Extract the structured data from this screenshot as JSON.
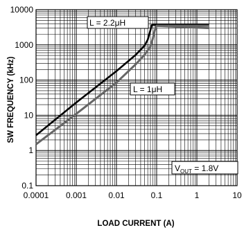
{
  "chart_data": {
    "type": "line",
    "xlabel": "LOAD CURRENT (A)",
    "ylabel": "SW FREQUENCY (kHz)",
    "x_scale": "log",
    "y_scale": "log",
    "xlim": [
      0.0001,
      10
    ],
    "ylim": [
      0.1,
      10000
    ],
    "grid": true,
    "x_ticks": [
      "0.0001",
      "0.001",
      "0.01",
      "0.1",
      "1",
      "10"
    ],
    "y_ticks": [
      "10000",
      "1000",
      "100",
      "10",
      "1",
      "0.1"
    ],
    "series": [
      {
        "name": "L = 2.2μH",
        "color": "#000000",
        "points": [
          [
            0.0001,
            2.7
          ],
          [
            0.001,
            23
          ],
          [
            0.01,
            180
          ],
          [
            0.03,
            520
          ],
          [
            0.05,
            950
          ],
          [
            0.06,
            1400
          ],
          [
            0.07,
            2600
          ],
          [
            0.075,
            3600
          ],
          [
            0.08,
            3700
          ],
          [
            2,
            3700
          ]
        ]
      },
      {
        "name": "L = 1μH",
        "color": "#666666",
        "points": [
          [
            0.0001,
            1.5
          ],
          [
            0.001,
            11
          ],
          [
            0.01,
            85
          ],
          [
            0.03,
            280
          ],
          [
            0.05,
            520
          ],
          [
            0.07,
            900
          ],
          [
            0.08,
            1500
          ],
          [
            0.09,
            2600
          ],
          [
            0.1,
            3500
          ],
          [
            2,
            3500
          ]
        ]
      },
      {
        "name": "",
        "color": "#666666",
        "points": [
          [
            0.1,
            3500
          ],
          [
            2,
            3000
          ]
        ]
      }
    ],
    "annotations": [
      {
        "text": "L = 2.2μH"
      },
      {
        "text": "L = 1μH"
      },
      {
        "main": "V",
        "sub": "OUT",
        "rest": " = 1.8V"
      }
    ]
  }
}
